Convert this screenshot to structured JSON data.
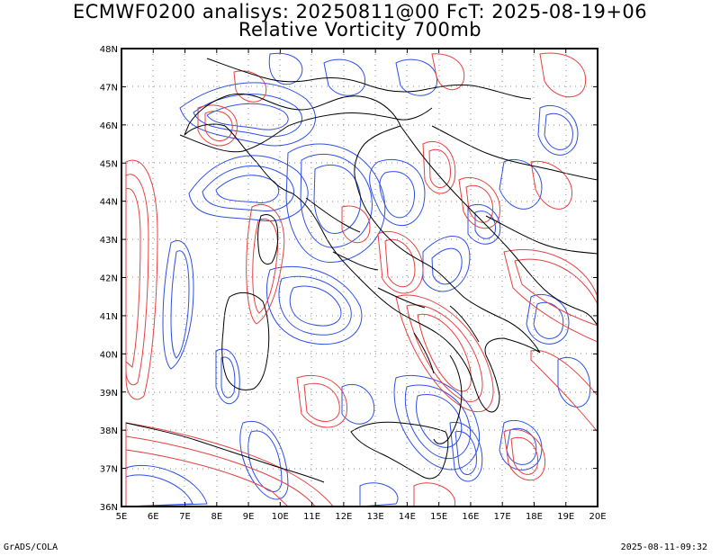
{
  "title": {
    "line1": "ECMWF0200 analisys: 20250811@00 FcT: 2025-08-19+06",
    "line2": "Relative Vorticity 700mb"
  },
  "axes": {
    "lon_labels": [
      "5E",
      "6E",
      "7E",
      "8E",
      "9E",
      "10E",
      "11E",
      "12E",
      "13E",
      "14E",
      "15E",
      "16E",
      "17E",
      "18E",
      "19E",
      "20E"
    ],
    "lat_labels": [
      "48N",
      "47N",
      "46N",
      "45N",
      "44N",
      "43N",
      "42N",
      "41N",
      "40N",
      "39N",
      "38N",
      "37N",
      "36N"
    ],
    "lon_range": [
      5,
      20
    ],
    "lat_range": [
      36,
      48
    ]
  },
  "colors": {
    "positive": "#e84040",
    "negative": "#2e4fe8",
    "border": "#000000",
    "grid": "#888888"
  },
  "footer": {
    "left": "GrADS/COLA",
    "right": "2025-08-11-09:32"
  }
}
